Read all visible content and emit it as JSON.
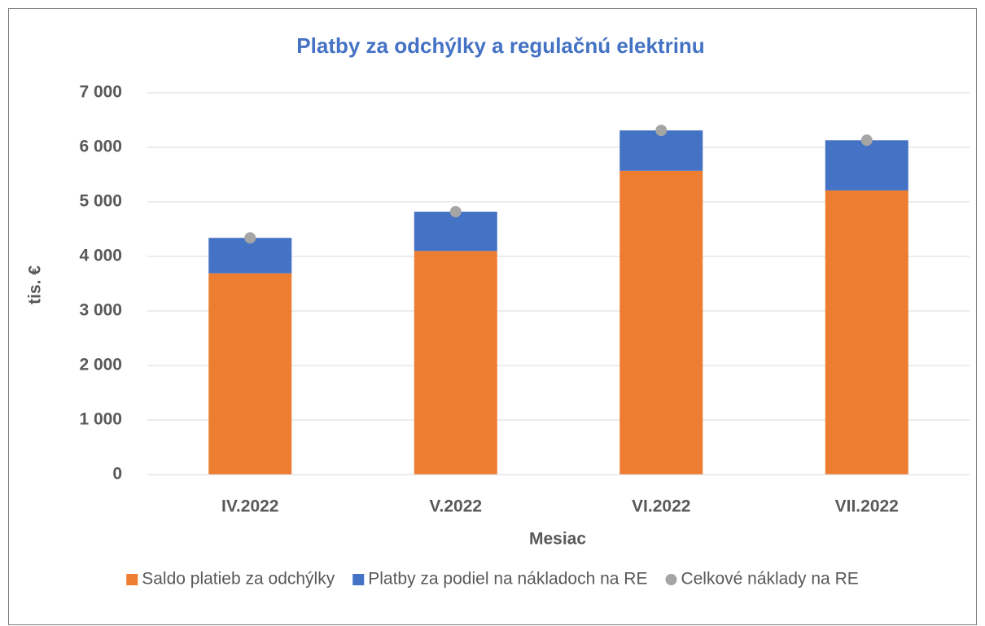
{
  "chart_data": {
    "type": "bar",
    "stacked": true,
    "title": "Platby za odchýlky a regulačnú elektrinu",
    "x_label": "Mesiac",
    "y_label": "tis. €",
    "categories": [
      "IV.2022",
      "V.2022",
      "VI.2022",
      "VII.2022"
    ],
    "series": [
      {
        "name": "Saldo platieb za odchýlky",
        "color": "#ed7d31",
        "type": "bar",
        "values": [
          3690,
          4100,
          5570,
          5210
        ]
      },
      {
        "name": "Platby za podiel na nákladoch na RE",
        "color": "#4472c4",
        "type": "bar",
        "values": [
          650,
          720,
          740,
          920
        ]
      },
      {
        "name": "Celkové náklady na RE",
        "color": "#a5a5a5",
        "type": "scatter",
        "values": [
          4340,
          4820,
          6310,
          6130
        ]
      }
    ],
    "ylim": [
      0,
      7000
    ],
    "yticks": [
      {
        "value": 0,
        "label": "0"
      },
      {
        "value": 1000,
        "label": "1 000"
      },
      {
        "value": 2000,
        "label": "2 000"
      },
      {
        "value": 3000,
        "label": "3 000"
      },
      {
        "value": 4000,
        "label": "4 000"
      },
      {
        "value": 5000,
        "label": "5 000"
      },
      {
        "value": 6000,
        "label": "6 000"
      },
      {
        "value": 7000,
        "label": "7 000"
      }
    ],
    "grid": true,
    "legend": "bottom"
  }
}
